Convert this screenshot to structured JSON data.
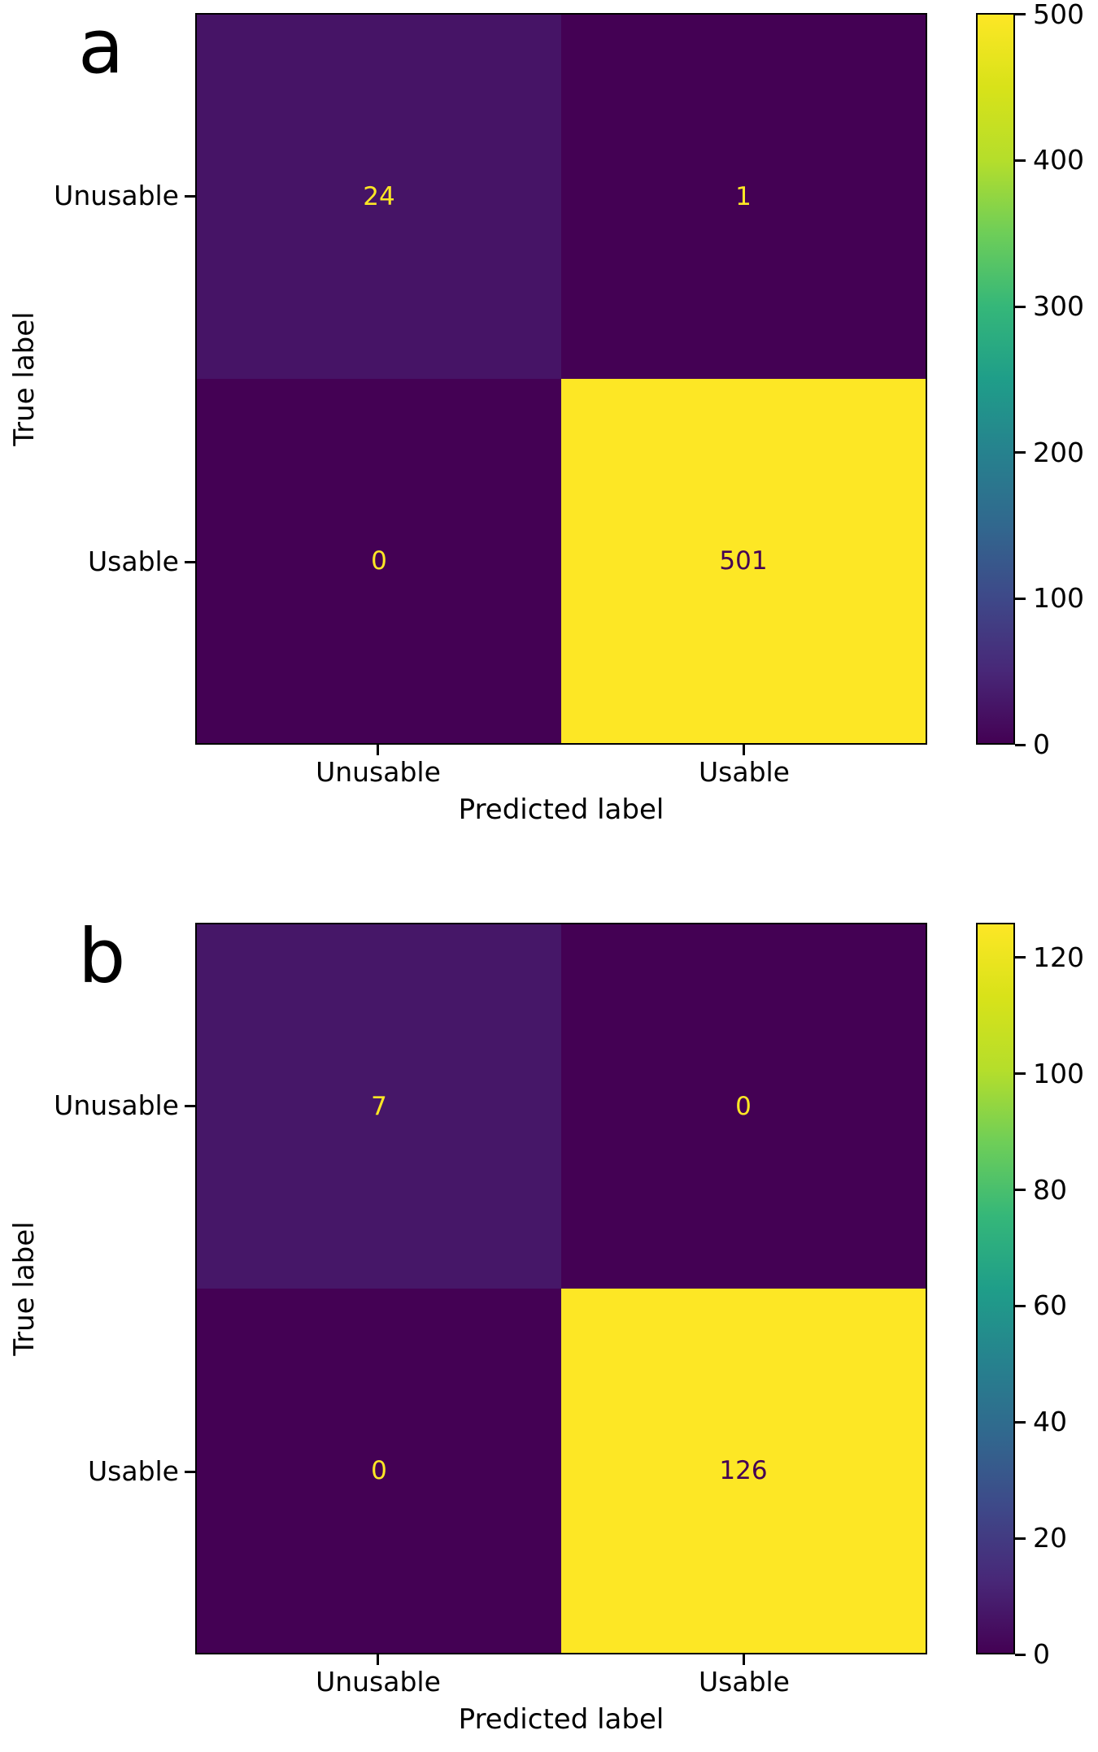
{
  "chart_data": [
    {
      "type": "heatmap",
      "panel_label": "a",
      "xlabel": "Predicted label",
      "ylabel": "True label",
      "x_tick_labels": [
        "Unusable",
        "Usable"
      ],
      "y_tick_labels": [
        "Unusable",
        "Usable"
      ],
      "matrix": [
        [
          24,
          1
        ],
        [
          0,
          501
        ]
      ],
      "colormap": "viridis",
      "colorbar_range": [
        0,
        501
      ],
      "colorbar_ticks": [
        0,
        100,
        200,
        300,
        400,
        500
      ],
      "cell_colors": [
        [
          "#461466",
          "#440154"
        ],
        [
          "#440154",
          "#fde725"
        ]
      ],
      "cell_text_colors": [
        [
          "#fde725",
          "#fde725"
        ],
        [
          "#fde725",
          "#440154"
        ]
      ]
    },
    {
      "type": "heatmap",
      "panel_label": "b",
      "xlabel": "Predicted label",
      "ylabel": "True label",
      "x_tick_labels": [
        "Unusable",
        "Usable"
      ],
      "y_tick_labels": [
        "Unusable",
        "Usable"
      ],
      "matrix": [
        [
          7,
          0
        ],
        [
          0,
          126
        ]
      ],
      "colormap": "viridis",
      "colorbar_range": [
        0,
        126
      ],
      "colorbar_ticks": [
        0,
        20,
        40,
        60,
        80,
        100,
        120
      ],
      "cell_colors": [
        [
          "#461768",
          "#440154"
        ],
        [
          "#440154",
          "#fde725"
        ]
      ],
      "cell_text_colors": [
        [
          "#fde725",
          "#fde725"
        ],
        [
          "#fde725",
          "#440154"
        ]
      ]
    }
  ],
  "colors": {
    "background": "#ffffff",
    "axis": "#000000",
    "viridis_min": "#440154",
    "viridis_max": "#fde725"
  }
}
